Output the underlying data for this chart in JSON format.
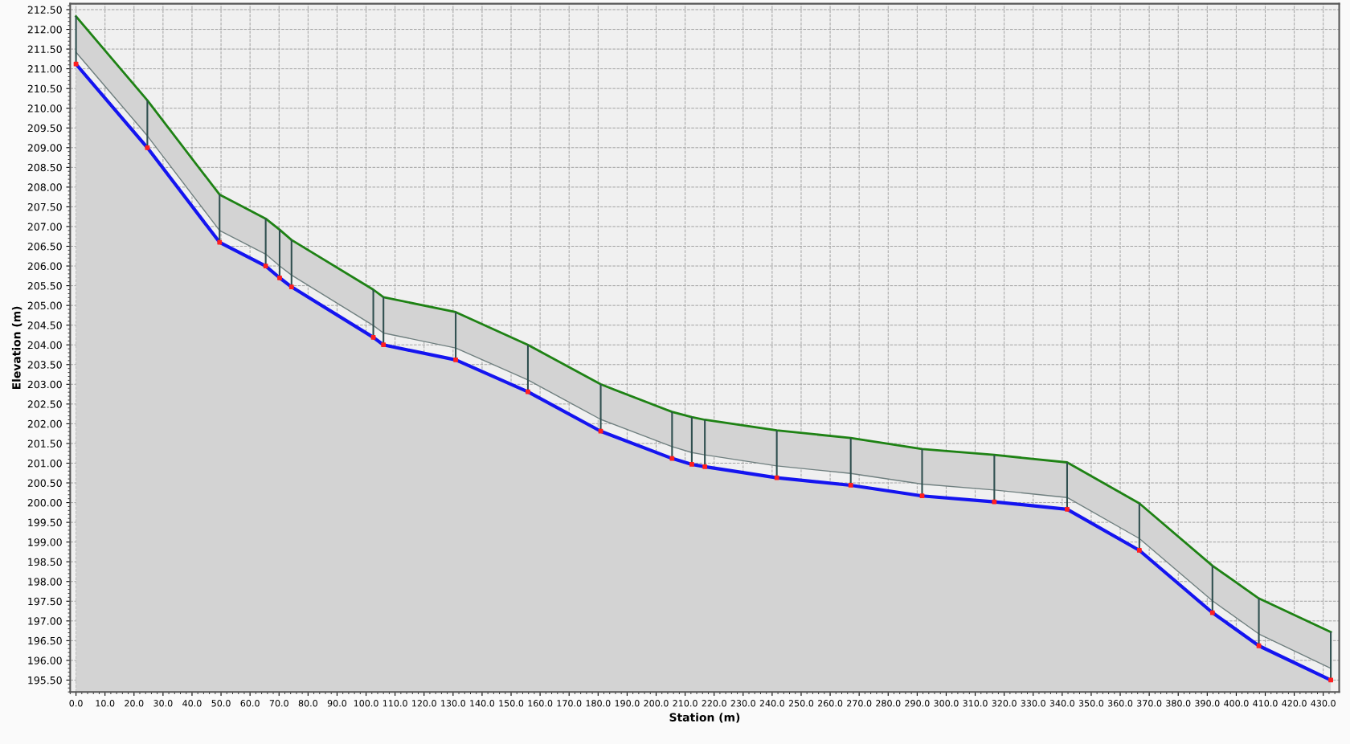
{
  "chart_data": {
    "type": "line",
    "xlabel": "Station (m)",
    "ylabel": "Elevation (m)",
    "x": [
      0,
      24.6,
      49.5,
      65.4,
      70.2,
      74.3,
      102.5,
      106.0,
      130.9,
      155.8,
      180.9,
      205.5,
      212.3,
      216.8,
      241.6,
      267.1,
      291.7,
      316.6,
      341.7,
      366.6,
      391.8,
      407.8,
      432.6
    ],
    "series": [
      {
        "color": "#1e8214",
        "values": [
          212.33,
          210.2,
          207.81,
          207.2,
          206.92,
          206.66,
          205.4,
          205.21,
          204.83,
          204.0,
          203.0,
          202.3,
          202.17,
          202.1,
          201.83,
          201.64,
          201.36,
          201.21,
          201.02,
          199.98,
          198.4,
          197.57,
          196.72
        ],
        "lower": [
          211.42,
          209.3,
          206.9,
          206.3,
          206.0,
          205.77,
          204.49,
          204.3,
          203.92,
          203.11,
          202.11,
          201.42,
          201.27,
          201.21,
          200.93,
          200.74,
          200.47,
          200.32,
          200.13,
          199.09,
          197.51,
          196.67,
          195.8
        ],
        "upper": [
          212.33,
          210.2,
          207.81,
          207.2,
          206.92,
          206.66,
          205.4,
          205.21,
          204.83,
          204.0,
          203.0,
          202.3,
          202.17,
          202.1,
          201.83,
          201.64,
          201.36,
          201.21,
          201.02,
          199.98,
          198.4,
          197.57,
          196.72
        ]
      },
      {
        "color": "#6f7f7f",
        "values": [
          211.42,
          209.3,
          206.9,
          206.3,
          206.0,
          205.77,
          204.49,
          204.3,
          203.92,
          203.11,
          202.11,
          201.42,
          201.27,
          201.21,
          200.93,
          200.74,
          200.47,
          200.32,
          200.13,
          199.09,
          197.51,
          196.67,
          195.8
        ]
      },
      {
        "type": "area",
        "color": "#1414f0",
        "values": [
          211.12,
          209.0,
          206.6,
          206.0,
          205.7,
          205.47,
          204.19,
          204.0,
          203.62,
          202.81,
          201.81,
          201.12,
          200.97,
          200.91,
          200.63,
          200.44,
          200.17,
          200.02,
          199.83,
          198.79,
          197.21,
          196.37,
          195.5
        ],
        "errors": [
          [
            211.12,
            212.33
          ],
          [
            209.0,
            210.2
          ],
          [
            206.6,
            207.81
          ],
          [
            206.0,
            207.2
          ],
          [
            205.7,
            206.92
          ],
          [
            205.47,
            206.66
          ],
          [
            204.19,
            205.4
          ],
          [
            204.0,
            205.21
          ],
          [
            203.62,
            204.83
          ],
          [
            202.81,
            204.0
          ],
          [
            201.81,
            203.0
          ],
          [
            201.12,
            202.3
          ],
          [
            200.97,
            202.17
          ],
          [
            200.91,
            202.1
          ],
          [
            200.63,
            201.83
          ],
          [
            200.44,
            201.64
          ],
          [
            200.17,
            201.36
          ],
          [
            200.02,
            201.21
          ],
          [
            199.83,
            201.02
          ],
          [
            198.79,
            199.98
          ],
          [
            197.21,
            198.4
          ],
          [
            196.37,
            197.57
          ],
          [
            195.5,
            196.72
          ]
        ]
      },
      {
        "type": "scatter",
        "color": "#ff2020",
        "marker": "square",
        "values": [
          211.12,
          209.0,
          206.6,
          206.0,
          205.7,
          205.47,
          204.19,
          204.0,
          203.62,
          202.81,
          201.81,
          201.12,
          200.97,
          200.91,
          200.63,
          200.44,
          200.17,
          200.02,
          199.83,
          198.79,
          197.21,
          196.37,
          195.5
        ]
      }
    ],
    "xlim": [
      -2,
      435.5
    ],
    "ylim": [
      195.2,
      212.65
    ],
    "xticks": [
      {
        "value": 0,
        "label": "0.0"
      },
      {
        "value": 10,
        "label": "10.0"
      },
      {
        "value": 20,
        "label": "20.0"
      },
      {
        "value": 30,
        "label": "30.0"
      },
      {
        "value": 40,
        "label": "40.0"
      },
      {
        "value": 50,
        "label": "50.0"
      },
      {
        "value": 60,
        "label": "60.0"
      },
      {
        "value": 70,
        "label": "70.0"
      },
      {
        "value": 80,
        "label": "80.0"
      },
      {
        "value": 90,
        "label": "90.0"
      },
      {
        "value": 100,
        "label": "100.0"
      },
      {
        "value": 110,
        "label": "110.0"
      },
      {
        "value": 120,
        "label": "120.0"
      },
      {
        "value": 130,
        "label": "130.0"
      },
      {
        "value": 140,
        "label": "140.0"
      },
      {
        "value": 150,
        "label": "150.0"
      },
      {
        "value": 160,
        "label": "160.0"
      },
      {
        "value": 170,
        "label": "170.0"
      },
      {
        "value": 180,
        "label": "180.0"
      },
      {
        "value": 190,
        "label": "190.0"
      },
      {
        "value": 200,
        "label": "200.0"
      },
      {
        "value": 210,
        "label": "210.0"
      },
      {
        "value": 220,
        "label": "220.0"
      },
      {
        "value": 230,
        "label": "230.0"
      },
      {
        "value": 240,
        "label": "240.0"
      },
      {
        "value": 250,
        "label": "250.0"
      },
      {
        "value": 260,
        "label": "260.0"
      },
      {
        "value": 270,
        "label": "270.0"
      },
      {
        "value": 280,
        "label": "280.0"
      },
      {
        "value": 290,
        "label": "290.0"
      },
      {
        "value": 300,
        "label": "300.0"
      },
      {
        "value": 310,
        "label": "310.0"
      },
      {
        "value": 320,
        "label": "320.0"
      },
      {
        "value": 330,
        "label": "330.0"
      },
      {
        "value": 340,
        "label": "340.0"
      },
      {
        "value": 350,
        "label": "350.0"
      },
      {
        "value": 360,
        "label": "360.0"
      },
      {
        "value": 370,
        "label": "370.0"
      },
      {
        "value": 380,
        "label": "380.0"
      },
      {
        "value": 390,
        "label": "390.0"
      },
      {
        "value": 400,
        "label": "400.0"
      },
      {
        "value": 410,
        "label": "410.0"
      },
      {
        "value": 420,
        "label": "420.0"
      },
      {
        "value": 430,
        "label": "430.0"
      }
    ],
    "yticks": [
      {
        "value": 195.5,
        "label": "195.50"
      },
      {
        "value": 196,
        "label": "196.00"
      },
      {
        "value": 196.5,
        "label": "196.50"
      },
      {
        "value": 197,
        "label": "197.00"
      },
      {
        "value": 197.5,
        "label": "197.50"
      },
      {
        "value": 198,
        "label": "198.00"
      },
      {
        "value": 198.5,
        "label": "198.50"
      },
      {
        "value": 199,
        "label": "199.00"
      },
      {
        "value": 199.5,
        "label": "199.50"
      },
      {
        "value": 200,
        "label": "200.00"
      },
      {
        "value": 200.5,
        "label": "200.50"
      },
      {
        "value": 201,
        "label": "201.00"
      },
      {
        "value": 201.5,
        "label": "201.50"
      },
      {
        "value": 202,
        "label": "202.00"
      },
      {
        "value": 202.5,
        "label": "202.50"
      },
      {
        "value": 203,
        "label": "203.00"
      },
      {
        "value": 203.5,
        "label": "203.50"
      },
      {
        "value": 204,
        "label": "204.00"
      },
      {
        "value": 204.5,
        "label": "204.50"
      },
      {
        "value": 205,
        "label": "205.00"
      },
      {
        "value": 205.5,
        "label": "205.50"
      },
      {
        "value": 206,
        "label": "206.00"
      },
      {
        "value": 206.5,
        "label": "206.50"
      },
      {
        "value": 207,
        "label": "207.00"
      },
      {
        "value": 207.5,
        "label": "207.50"
      },
      {
        "value": 208,
        "label": "208.00"
      },
      {
        "value": 208.5,
        "label": "208.50"
      },
      {
        "value": 209,
        "label": "209.00"
      },
      {
        "value": 209.5,
        "label": "209.50"
      },
      {
        "value": 210,
        "label": "210.00"
      },
      {
        "value": 210.5,
        "label": "210.50"
      },
      {
        "value": 211,
        "label": "211.00"
      },
      {
        "value": 211.5,
        "label": "211.50"
      },
      {
        "value": 212,
        "label": "212.00"
      },
      {
        "value": 212.5,
        "label": "212.50"
      }
    ],
    "grid": true
  }
}
